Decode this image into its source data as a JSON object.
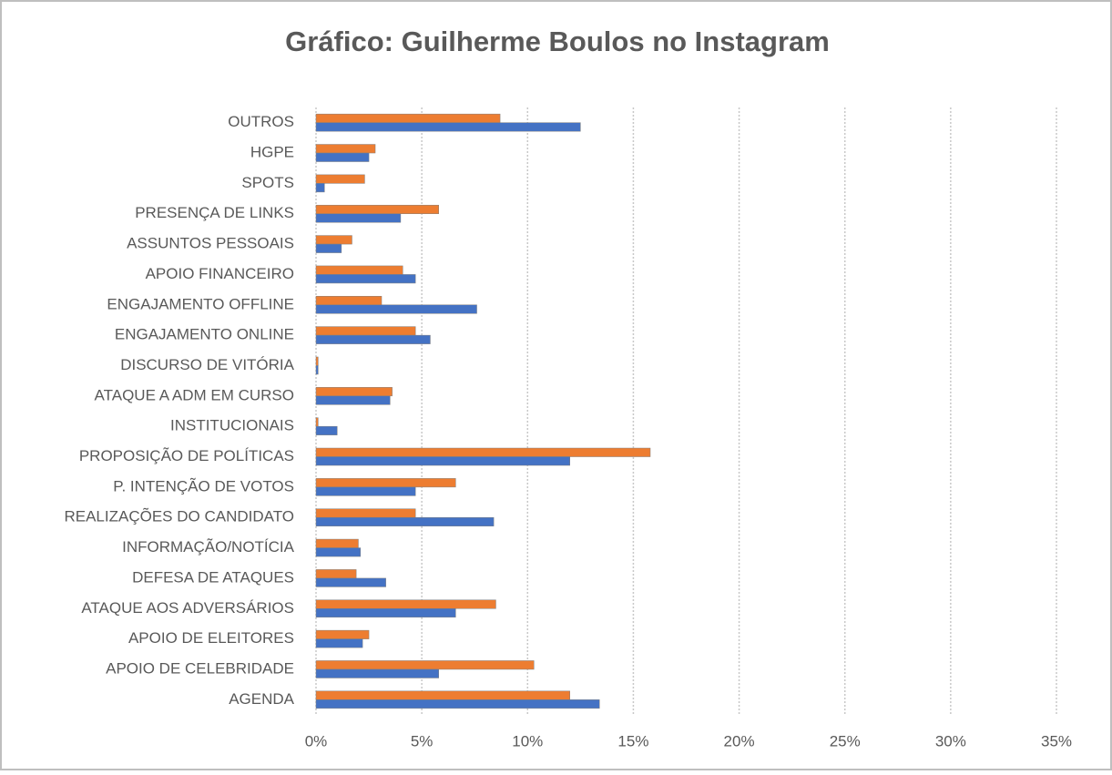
{
  "chart_data": {
    "type": "hbar",
    "title": "Gráfico: Guilherme Boulos no Instagram",
    "categories": [
      "OUTROS",
      "HGPE",
      "SPOTS",
      "PRESENÇA DE LINKS",
      "ASSUNTOS PESSOAIS",
      "APOIO FINANCEIRO",
      "ENGAJAMENTO OFFLINE",
      "ENGAJAMENTO ONLINE",
      "DISCURSO DE VITÓRIA",
      "ATAQUE A ADM EM CURSO",
      "INSTITUCIONAIS",
      "PROPOSIÇÃO DE POLÍTICAS",
      "P. INTENÇÃO DE VOTOS",
      "REALIZAÇÕES DO CANDIDATO",
      "INFORMAÇÃO/NOTÍCIA",
      "DEFESA DE ATAQUES",
      "ATAQUE AOS ADVERSÁRIOS",
      "APOIO DE ELEITORES",
      "APOIO DE CELEBRIDADE",
      "AGENDA"
    ],
    "series": [
      {
        "color": "#ed7d31",
        "values": [
          8.7,
          2.8,
          2.3,
          5.8,
          1.7,
          4.1,
          3.1,
          4.7,
          0.1,
          3.6,
          0.1,
          15.8,
          6.6,
          4.7,
          2.0,
          1.9,
          8.5,
          2.5,
          10.3,
          12.0
        ]
      },
      {
        "color": "#4472c4",
        "values": [
          12.5,
          2.5,
          0.4,
          4.0,
          1.2,
          4.7,
          7.6,
          5.4,
          0.1,
          3.5,
          1.0,
          12.0,
          4.7,
          8.4,
          2.1,
          3.3,
          6.6,
          2.2,
          5.8,
          13.4
        ]
      }
    ],
    "xlim": [
      0,
      35
    ],
    "xticks": [
      {
        "value": 0,
        "label": "0%"
      },
      {
        "value": 5,
        "label": "5%"
      },
      {
        "value": 10,
        "label": "10%"
      },
      {
        "value": 15,
        "label": "15%"
      },
      {
        "value": 20,
        "label": "20%"
      },
      {
        "value": 25,
        "label": "25%"
      },
      {
        "value": 30,
        "label": "30%"
      },
      {
        "value": 35,
        "label": "35%"
      }
    ],
    "grid": true
  }
}
